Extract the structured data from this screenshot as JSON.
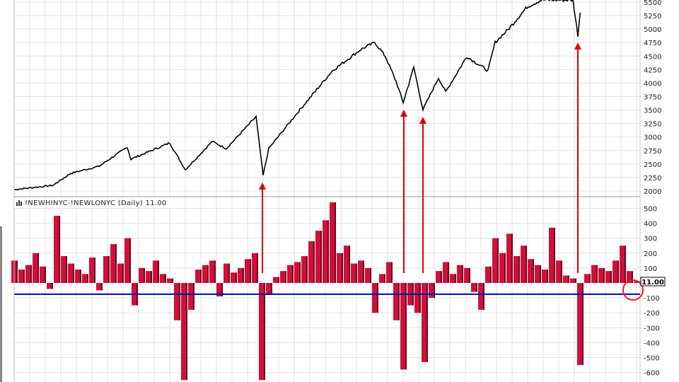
{
  "chart_data": [
    {
      "type": "line",
      "panel": "price",
      "title": "",
      "ylim": [
        2000,
        5500
      ],
      "y_ticks": [
        "5500",
        "5250",
        "5000",
        "4750",
        "4500",
        "4250",
        "4000",
        "3750",
        "3500",
        "3250",
        "3000",
        "2750",
        "2500",
        "2250",
        "2000"
      ],
      "axis_side": "right",
      "grid": true,
      "line_color": "#000000",
      "points": [
        [
          0,
          2026
        ],
        [
          5.5,
          2105
        ],
        [
          8,
          2328
        ],
        [
          12,
          2459
        ],
        [
          16,
          2813
        ],
        [
          16.5,
          2590
        ],
        [
          22,
          2892
        ],
        [
          24.2,
          2393
        ],
        [
          28,
          2918
        ],
        [
          30,
          2787
        ],
        [
          34.2,
          3376
        ],
        [
          35.2,
          2288
        ],
        [
          36,
          2787
        ],
        [
          40,
          3442
        ],
        [
          45,
          4229
        ],
        [
          49,
          4622
        ],
        [
          51,
          4753
        ],
        [
          52.5,
          4491
        ],
        [
          54,
          4032
        ],
        [
          55,
          3639
        ],
        [
          56.5,
          4294
        ],
        [
          57.8,
          3507
        ],
        [
          60,
          4098
        ],
        [
          61,
          3835
        ],
        [
          64,
          4491
        ],
        [
          67,
          4229
        ],
        [
          68,
          4753
        ],
        [
          70,
          5016
        ],
        [
          72.5,
          5409
        ],
        [
          74.5,
          5540
        ],
        [
          79,
          5540
        ],
        [
          79.7,
          4884
        ],
        [
          80.2,
          5540
        ]
      ]
    },
    {
      "type": "bar",
      "panel": "indicator",
      "legend_label": "!NEWHINYC-!NEWLONYC (Daily) 11.00",
      "last_value_label": "11.00",
      "ylim": [
        -600,
        550
      ],
      "y_ticks": [
        "500",
        "400",
        "300",
        "200",
        "100",
        "-100",
        "-200",
        "-300",
        "-400",
        "-500",
        "-600"
      ],
      "axis_side": "right",
      "grid": true,
      "bar_color": "#d0103a",
      "outline_color": "#000000",
      "reference_line": {
        "value": -75,
        "color": "#0000cc"
      },
      "values": [
        150,
        90,
        120,
        200,
        110,
        -40,
        450,
        180,
        130,
        90,
        60,
        170,
        -50,
        180,
        260,
        130,
        300,
        -150,
        100,
        80,
        150,
        60,
        30,
        -250,
        -650,
        -180,
        90,
        120,
        150,
        -90,
        130,
        70,
        100,
        160,
        200,
        -650,
        -80,
        40,
        80,
        120,
        140,
        180,
        280,
        350,
        420,
        540,
        200,
        250,
        130,
        150,
        100,
        -200,
        60,
        140,
        -250,
        -580,
        -150,
        -200,
        -530,
        -100,
        80,
        140,
        60,
        120,
        100,
        -60,
        -180,
        110,
        300,
        200,
        330,
        180,
        250,
        160,
        120,
        90,
        370,
        150,
        50,
        30,
        -550,
        60,
        120,
        100,
        80,
        150,
        250,
        80,
        11
      ]
    },
    {
      "type": "annotations",
      "arrows_at_index": [
        35.1,
        55.1,
        57.8,
        79.7
      ],
      "arrow_color": "#e00000",
      "circle_at_index": 88,
      "circle_color": "#e02020"
    }
  ]
}
